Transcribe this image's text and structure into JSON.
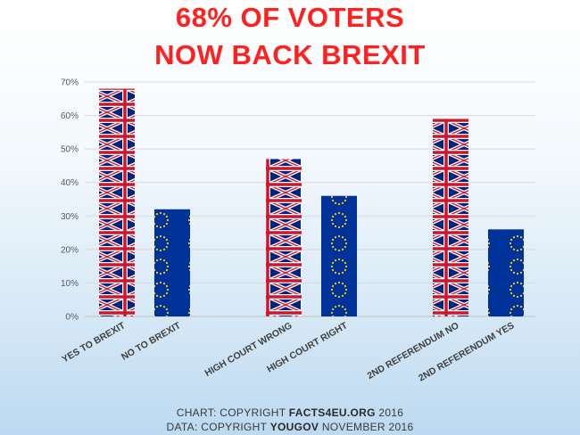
{
  "header": {
    "title_line1": "68% OF VOTERS",
    "title_line2": "NOW BACK BREXIT"
  },
  "footer": {
    "line1_prefix": "CHART: COPYRIGHT ",
    "line1_brand": "FACTS4EU.ORG",
    "line1_suffix": " 2016",
    "line2_prefix": "DATA: COPYRIGHT ",
    "line2_brand": "YOUGOV",
    "line2_suffix": " NOVEMBER 2016"
  },
  "colors": {
    "title": "#ff2020",
    "union_flag_blue": "#00247d",
    "union_flag_red": "#cf142b",
    "eu_blue": "#003399",
    "eu_star": "#ffcc00",
    "gridline": "#d9d9d9"
  },
  "chart_data": {
    "type": "bar",
    "categories": [
      "YES TO BREXIT",
      "NO TO BREXIT",
      "HIGH COURT WRONG",
      "HIGH COURT RIGHT",
      "2ND REFERENDUM NO",
      "2ND REFERENDUM YES"
    ],
    "values": [
      68,
      32,
      47,
      36,
      59,
      26
    ],
    "bar_fill": [
      "union-flag",
      "eu-flag",
      "union-flag",
      "eu-flag",
      "union-flag",
      "eu-flag"
    ],
    "y_ticks": [
      "0%",
      "10%",
      "20%",
      "30%",
      "40%",
      "50%",
      "60%",
      "70%"
    ],
    "ylim": [
      0,
      70
    ],
    "grid": true,
    "legend": "none"
  }
}
